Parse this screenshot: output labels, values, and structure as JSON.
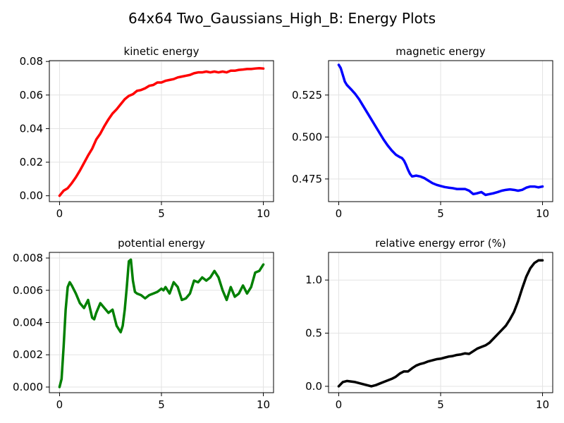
{
  "suptitle": "64x64 Two_Gaussians_High_B: Energy Plots",
  "chart_data": [
    {
      "type": "line",
      "title": "kinetic energy",
      "xlabel": "",
      "ylabel": "",
      "xlim": [
        -0.5,
        10.5
      ],
      "ylim": [
        -0.0035,
        0.0805
      ],
      "xticks": [
        0,
        5,
        10
      ],
      "xticklabels": [
        "0",
        "5",
        "10"
      ],
      "yticks": [
        0,
        0.02,
        0.04,
        0.06,
        0.08
      ],
      "yticklabels": [
        "0.00",
        "0.02",
        "0.04",
        "0.06",
        "0.08"
      ],
      "grid": true,
      "color": "#ff0000",
      "x": [
        0,
        0.2,
        0.4,
        0.6,
        0.8,
        1.0,
        1.2,
        1.4,
        1.6,
        1.8,
        2.0,
        2.2,
        2.4,
        2.6,
        2.8,
        3.0,
        3.2,
        3.4,
        3.6,
        3.8,
        4.0,
        4.2,
        4.4,
        4.6,
        4.8,
        5.0,
        5.2,
        5.4,
        5.6,
        5.8,
        6.0,
        6.2,
        6.4,
        6.6,
        6.8,
        7.0,
        7.2,
        7.4,
        7.6,
        7.8,
        8.0,
        8.2,
        8.4,
        8.6,
        8.8,
        9.0,
        9.2,
        9.4,
        9.6,
        9.8,
        10.0
      ],
      "y": [
        0.0,
        0.003,
        0.0045,
        0.0075,
        0.011,
        0.015,
        0.0195,
        0.024,
        0.028,
        0.0335,
        0.037,
        0.0415,
        0.0455,
        0.049,
        0.0515,
        0.0545,
        0.0575,
        0.0595,
        0.0605,
        0.0625,
        0.063,
        0.064,
        0.0655,
        0.066,
        0.0675,
        0.0675,
        0.0685,
        0.069,
        0.0695,
        0.0705,
        0.071,
        0.0715,
        0.072,
        0.073,
        0.0735,
        0.0735,
        0.074,
        0.0735,
        0.074,
        0.0735,
        0.074,
        0.0735,
        0.0745,
        0.0745,
        0.075,
        0.0752,
        0.0755,
        0.0755,
        0.0758,
        0.076,
        0.0758
      ]
    },
    {
      "type": "line",
      "title": "magnetic energy",
      "xlabel": "",
      "ylabel": "",
      "xlim": [
        -0.5,
        10.5
      ],
      "ylim": [
        0.4615,
        0.5455
      ],
      "xticks": [
        0,
        5,
        10
      ],
      "xticklabels": [
        "0",
        "5",
        "10"
      ],
      "yticks": [
        0.475,
        0.5,
        0.525
      ],
      "yticklabels": [
        "0.475",
        "0.500",
        "0.525"
      ],
      "grid": true,
      "color": "#0000ff",
      "x": [
        0,
        0.1,
        0.2,
        0.3,
        0.4,
        0.6,
        0.8,
        1.0,
        1.2,
        1.4,
        1.6,
        1.8,
        2.0,
        2.2,
        2.4,
        2.6,
        2.8,
        3.0,
        3.1,
        3.2,
        3.3,
        3.4,
        3.5,
        3.6,
        3.8,
        4.0,
        4.2,
        4.4,
        4.6,
        4.8,
        5.0,
        5.2,
        5.4,
        5.6,
        5.8,
        6.0,
        6.2,
        6.4,
        6.6,
        6.8,
        7.0,
        7.2,
        7.4,
        7.6,
        7.8,
        8.0,
        8.2,
        8.4,
        8.6,
        8.8,
        9.0,
        9.2,
        9.4,
        9.6,
        9.8,
        10.0
      ],
      "y": [
        0.543,
        0.541,
        0.537,
        0.533,
        0.531,
        0.5285,
        0.5258,
        0.5225,
        0.5185,
        0.5145,
        0.5105,
        0.5065,
        0.5025,
        0.4985,
        0.495,
        0.492,
        0.4895,
        0.488,
        0.4875,
        0.486,
        0.4835,
        0.4805,
        0.478,
        0.4765,
        0.477,
        0.4765,
        0.4755,
        0.474,
        0.4725,
        0.4715,
        0.4708,
        0.4702,
        0.4698,
        0.4695,
        0.469,
        0.469,
        0.469,
        0.468,
        0.466,
        0.4665,
        0.4672,
        0.4655,
        0.466,
        0.4665,
        0.4672,
        0.468,
        0.4685,
        0.4688,
        0.4685,
        0.468,
        0.4685,
        0.4698,
        0.4705,
        0.4705,
        0.47,
        0.4705
      ]
    },
    {
      "type": "line",
      "title": "potential energy",
      "xlabel": "",
      "ylabel": "",
      "xlim": [
        -0.5,
        10.5
      ],
      "ylim": [
        -0.00035,
        0.00835
      ],
      "xticks": [
        0,
        5,
        10
      ],
      "xticklabels": [
        "0",
        "5",
        "10"
      ],
      "yticks": [
        0,
        0.002,
        0.004,
        0.006,
        0.008
      ],
      "yticklabels": [
        "0.000",
        "0.002",
        "0.004",
        "0.006",
        "0.008"
      ],
      "grid": true,
      "color": "#008000",
      "x": [
        0,
        0.1,
        0.2,
        0.3,
        0.4,
        0.5,
        0.6,
        0.8,
        1.0,
        1.2,
        1.4,
        1.6,
        1.7,
        1.8,
        2.0,
        2.2,
        2.4,
        2.6,
        2.8,
        3.0,
        3.1,
        3.2,
        3.3,
        3.4,
        3.5,
        3.6,
        3.7,
        3.8,
        4.0,
        4.2,
        4.4,
        4.6,
        4.8,
        5.0,
        5.1,
        5.2,
        5.4,
        5.6,
        5.8,
        6.0,
        6.2,
        6.4,
        6.6,
        6.8,
        7.0,
        7.2,
        7.4,
        7.6,
        7.8,
        8.0,
        8.2,
        8.4,
        8.6,
        8.8,
        9.0,
        9.2,
        9.4,
        9.6,
        9.8,
        10.0
      ],
      "y": [
        0.0,
        0.0005,
        0.0025,
        0.0048,
        0.0062,
        0.0065,
        0.0063,
        0.0058,
        0.0052,
        0.0049,
        0.0054,
        0.0043,
        0.0042,
        0.0046,
        0.0052,
        0.0049,
        0.0046,
        0.0048,
        0.0038,
        0.0034,
        0.0038,
        0.0048,
        0.0062,
        0.0078,
        0.0079,
        0.0066,
        0.0059,
        0.0058,
        0.0057,
        0.0055,
        0.0057,
        0.0058,
        0.0059,
        0.0061,
        0.006,
        0.0062,
        0.0058,
        0.0065,
        0.0062,
        0.0054,
        0.0055,
        0.0058,
        0.0066,
        0.0065,
        0.0068,
        0.0066,
        0.0068,
        0.0072,
        0.0068,
        0.006,
        0.0054,
        0.0062,
        0.0056,
        0.0058,
        0.0063,
        0.0058,
        0.0062,
        0.0071,
        0.0072,
        0.0076
      ]
    },
    {
      "type": "line",
      "title": "relative energy error (%)",
      "xlabel": "",
      "ylabel": "",
      "xlim": [
        -0.5,
        10.5
      ],
      "ylim": [
        -0.06,
        1.26
      ],
      "xticks": [
        0,
        5,
        10
      ],
      "xticklabels": [
        "0",
        "5",
        "10"
      ],
      "yticks": [
        0,
        0.5,
        1.0
      ],
      "yticklabels": [
        "0.0",
        "0.5",
        "1.0"
      ],
      "grid": true,
      "color": "#000000",
      "x": [
        0,
        0.2,
        0.4,
        0.6,
        0.8,
        1.0,
        1.2,
        1.4,
        1.6,
        1.8,
        2.0,
        2.2,
        2.4,
        2.6,
        2.8,
        3.0,
        3.2,
        3.4,
        3.6,
        3.8,
        4.0,
        4.2,
        4.4,
        4.6,
        4.8,
        5.0,
        5.2,
        5.4,
        5.6,
        5.8,
        6.0,
        6.2,
        6.4,
        6.6,
        6.8,
        7.0,
        7.2,
        7.4,
        7.6,
        7.8,
        8.0,
        8.2,
        8.4,
        8.6,
        8.8,
        9.0,
        9.2,
        9.4,
        9.6,
        9.8,
        10.0
      ],
      "y": [
        0.0,
        0.04,
        0.05,
        0.045,
        0.04,
        0.03,
        0.02,
        0.01,
        0.0,
        0.01,
        0.025,
        0.04,
        0.055,
        0.07,
        0.09,
        0.12,
        0.14,
        0.14,
        0.17,
        0.195,
        0.21,
        0.22,
        0.235,
        0.245,
        0.255,
        0.26,
        0.27,
        0.28,
        0.285,
        0.295,
        0.3,
        0.31,
        0.305,
        0.33,
        0.355,
        0.37,
        0.385,
        0.41,
        0.45,
        0.49,
        0.53,
        0.57,
        0.63,
        0.7,
        0.8,
        0.92,
        1.03,
        1.11,
        1.16,
        1.185,
        1.185
      ]
    }
  ]
}
